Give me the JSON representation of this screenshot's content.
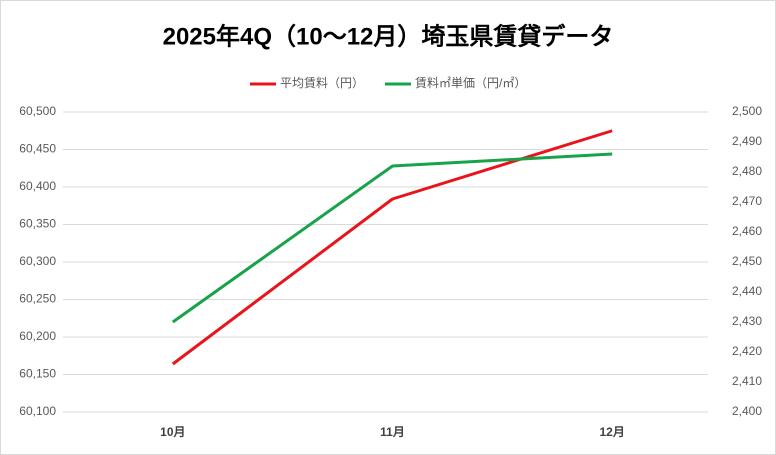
{
  "chart_data": {
    "type": "line",
    "title": "2025年4Q（10～12月）埼玉県賃貸データ",
    "categories": [
      "10月",
      "11月",
      "12月"
    ],
    "series": [
      {
        "name": "平均賃料（円）",
        "color": "#e8141b",
        "values": [
          60164,
          60384,
          60475
        ]
      },
      {
        "name": "賃料㎡単価（円/㎡）",
        "color": "#16a34a",
        "axis": "y2",
        "values": [
          2430,
          2482,
          2486
        ]
      }
    ],
    "ylim": [
      60100,
      60500
    ],
    "yticks": [
      {
        "value": 60100,
        "label": "60,100"
      },
      {
        "value": 60150,
        "label": "60,150"
      },
      {
        "value": 60200,
        "label": "60,200"
      },
      {
        "value": 60250,
        "label": "60,250"
      },
      {
        "value": 60300,
        "label": "60,300"
      },
      {
        "value": 60350,
        "label": "60,350"
      },
      {
        "value": 60400,
        "label": "60,400"
      },
      {
        "value": 60450,
        "label": "60,450"
      },
      {
        "value": 60500,
        "label": "60,500"
      }
    ],
    "y2lim": [
      2400,
      2500
    ],
    "y2ticks": [
      {
        "value": 2400,
        "label": "2,400"
      },
      {
        "value": 2410,
        "label": "2,410"
      },
      {
        "value": 2420,
        "label": "2,420"
      },
      {
        "value": 2430,
        "label": "2,430"
      },
      {
        "value": 2440,
        "label": "2,440"
      },
      {
        "value": 2450,
        "label": "2,450"
      },
      {
        "value": 2460,
        "label": "2,460"
      },
      {
        "value": 2470,
        "label": "2,470"
      },
      {
        "value": 2480,
        "label": "2,480"
      },
      {
        "value": 2490,
        "label": "2,490"
      },
      {
        "value": 2500,
        "label": "2,500"
      }
    ],
    "grid": true,
    "legend": "top"
  }
}
